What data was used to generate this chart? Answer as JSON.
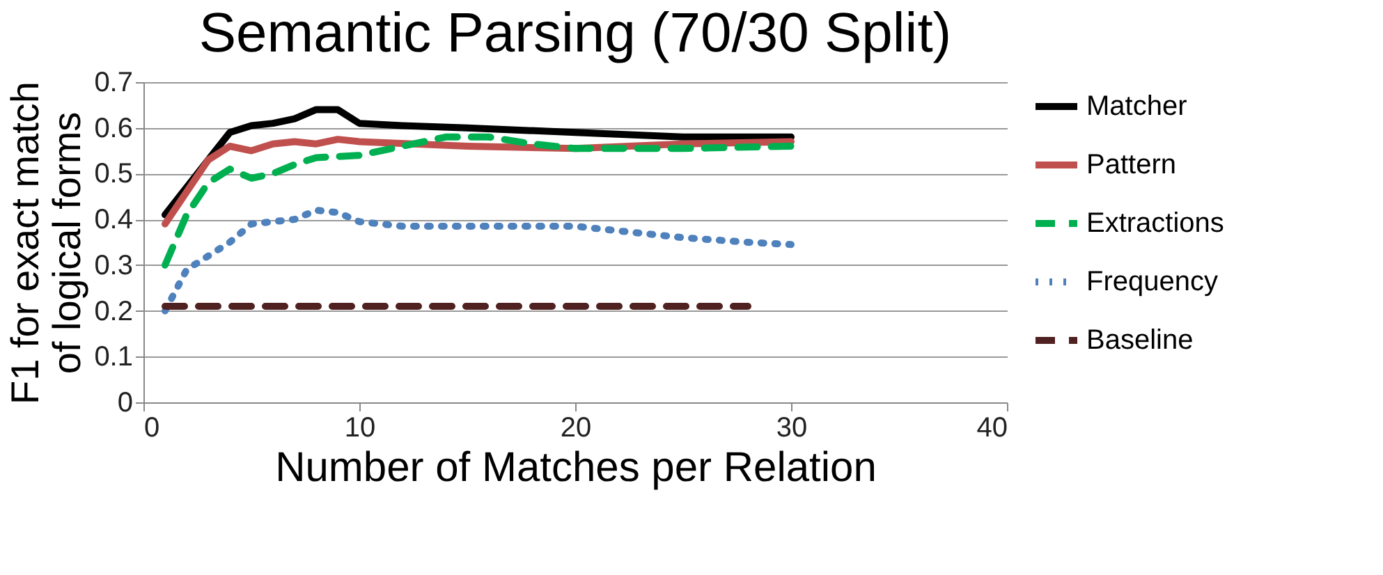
{
  "chart_data": {
    "type": "line",
    "title": "Semantic Parsing (70/30 Split)",
    "xlabel": "Number of Matches per Relation",
    "ylabel": "F1 for exact match\nof logical forms",
    "xlim": [
      0,
      40
    ],
    "xticks": [
      0,
      10,
      20,
      30,
      40
    ],
    "ylim": [
      0,
      0.7
    ],
    "yticks": [
      0,
      0.1,
      0.2,
      0.3,
      0.4,
      0.5,
      0.6,
      0.7
    ],
    "grid": "y",
    "legend": "right",
    "marker": "none",
    "series": [
      {
        "name": "Matcher",
        "color": "#000000",
        "line_style": "solid",
        "x": [
          1,
          2,
          3,
          4,
          5,
          6,
          7,
          8,
          9,
          10,
          12,
          15,
          20,
          25,
          30
        ],
        "values": [
          0.41,
          0.47,
          0.53,
          0.59,
          0.605,
          0.61,
          0.62,
          0.64,
          0.64,
          0.61,
          0.605,
          0.6,
          0.59,
          0.58,
          0.58
        ]
      },
      {
        "name": "Pattern",
        "color": "#c0504d",
        "line_style": "solid",
        "x": [
          1,
          2,
          3,
          4,
          5,
          6,
          7,
          8,
          9,
          10,
          15,
          20,
          25,
          30
        ],
        "values": [
          0.39,
          0.46,
          0.53,
          0.56,
          0.55,
          0.565,
          0.57,
          0.565,
          0.575,
          0.57,
          0.56,
          0.555,
          0.565,
          0.57
        ]
      },
      {
        "name": "Extractions",
        "color": "#00b050",
        "line_style": "dashed",
        "x": [
          1,
          2,
          3,
          4,
          5,
          6,
          7,
          8,
          10,
          12,
          14,
          16,
          18,
          20,
          25,
          30
        ],
        "values": [
          0.3,
          0.41,
          0.48,
          0.51,
          0.49,
          0.5,
          0.52,
          0.535,
          0.54,
          0.56,
          0.58,
          0.58,
          0.565,
          0.555,
          0.555,
          0.56
        ]
      },
      {
        "name": "Frequency",
        "color": "#4f81bd",
        "line_style": "dotted",
        "x": [
          1,
          2,
          3,
          4,
          5,
          6,
          7,
          8,
          9,
          10,
          11,
          12,
          14,
          16,
          18,
          20,
          22,
          25,
          28,
          30
        ],
        "values": [
          0.2,
          0.29,
          0.32,
          0.35,
          0.39,
          0.395,
          0.4,
          0.42,
          0.415,
          0.395,
          0.39,
          0.385,
          0.385,
          0.385,
          0.385,
          0.385,
          0.375,
          0.36,
          0.35,
          0.345
        ]
      },
      {
        "name": "Baseline",
        "color": "#4f2120",
        "line_style": "dashed",
        "x": [
          1,
          28
        ],
        "values": [
          0.21,
          0.21
        ]
      }
    ]
  }
}
